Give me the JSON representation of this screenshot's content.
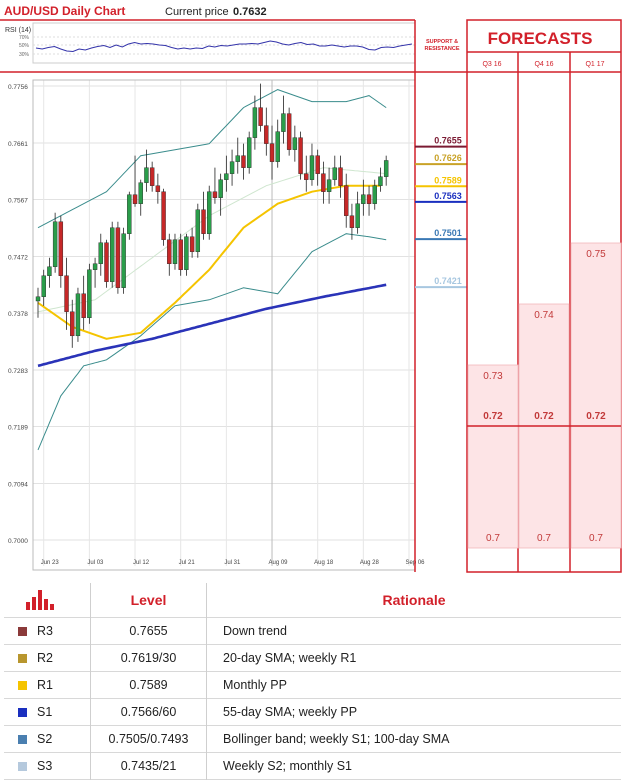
{
  "header": {
    "title": "AUD/USD Daily Chart",
    "price_label": "Current price",
    "price_value": "0.7632",
    "rsi_label": "RSI (14)",
    "rsi_ticks": [
      "70%",
      "50%",
      "30%"
    ]
  },
  "side_panel": {
    "title": "SUPPORT & RESISTANCE",
    "levels": [
      {
        "value": "0.7655",
        "color": "#7b1a33"
      },
      {
        "value": "0.7626",
        "color": "#c9a227"
      },
      {
        "value": "0.7589",
        "color": "#f5c400"
      },
      {
        "value": "0.7563",
        "color": "#1a2fbf"
      },
      {
        "value": "0.7501",
        "color": "#3a78b4"
      },
      {
        "value": "0.7421",
        "color": "#a7c7e0"
      }
    ]
  },
  "forecasts": {
    "title": "FORECASTS",
    "columns": [
      "Q3 16",
      "Q4 16",
      "Q1 17"
    ],
    "high": [
      0.73,
      0.74,
      0.75
    ],
    "mid": [
      0.72,
      0.72,
      0.72
    ],
    "low": [
      0.7,
      0.7,
      0.7
    ],
    "labels_high": [
      "0.73",
      "0.74",
      "0.75"
    ],
    "labels_mid": [
      "0.72",
      "0.72",
      "0.72"
    ],
    "labels_low": [
      "0.7",
      "0.7",
      "0.7"
    ]
  },
  "chart_data": {
    "type": "candlestick",
    "title": "AUD/USD Daily Chart",
    "ylim": [
      0.7,
      0.7756
    ],
    "y_ticks": [
      "0.7756",
      "0.7661",
      "0.7567",
      "0.7472",
      "0.7378",
      "0.7283",
      "0.7189",
      "0.7094",
      "0.7000"
    ],
    "x_ticks": [
      "Jun 23",
      "Jul 03",
      "Jul 12",
      "Jul 21",
      "Jul 31",
      "Aug 09",
      "Aug 18",
      "Aug 28",
      "Sep 06"
    ],
    "x_tick_index": [
      1,
      9,
      17,
      25,
      33,
      41,
      49,
      57,
      65
    ],
    "ohlc": [
      [
        0.7398,
        0.742,
        0.737,
        0.7405
      ],
      [
        0.7405,
        0.745,
        0.739,
        0.744
      ],
      [
        0.744,
        0.747,
        0.742,
        0.7455
      ],
      [
        0.7455,
        0.7545,
        0.7445,
        0.753
      ],
      [
        0.753,
        0.754,
        0.742,
        0.744
      ],
      [
        0.744,
        0.747,
        0.735,
        0.738
      ],
      [
        0.738,
        0.74,
        0.732,
        0.734
      ],
      [
        0.734,
        0.742,
        0.733,
        0.741
      ],
      [
        0.741,
        0.744,
        0.735,
        0.737
      ],
      [
        0.737,
        0.746,
        0.736,
        0.745
      ],
      [
        0.745,
        0.747,
        0.742,
        0.746
      ],
      [
        0.746,
        0.751,
        0.744,
        0.7495
      ],
      [
        0.7495,
        0.75,
        0.742,
        0.743
      ],
      [
        0.743,
        0.753,
        0.742,
        0.752
      ],
      [
        0.752,
        0.753,
        0.741,
        0.742
      ],
      [
        0.742,
        0.752,
        0.741,
        0.751
      ],
      [
        0.751,
        0.758,
        0.75,
        0.7575
      ],
      [
        0.7575,
        0.764,
        0.7555,
        0.756
      ],
      [
        0.756,
        0.76,
        0.754,
        0.7595
      ],
      [
        0.7595,
        0.765,
        0.758,
        0.762
      ],
      [
        0.762,
        0.763,
        0.758,
        0.759
      ],
      [
        0.759,
        0.761,
        0.756,
        0.758
      ],
      [
        0.758,
        0.7585,
        0.749,
        0.75
      ],
      [
        0.75,
        0.751,
        0.744,
        0.746
      ],
      [
        0.746,
        0.751,
        0.745,
        0.75
      ],
      [
        0.75,
        0.751,
        0.744,
        0.745
      ],
      [
        0.745,
        0.751,
        0.744,
        0.7505
      ],
      [
        0.7505,
        0.752,
        0.747,
        0.748
      ],
      [
        0.748,
        0.756,
        0.747,
        0.755
      ],
      [
        0.755,
        0.758,
        0.75,
        0.751
      ],
      [
        0.751,
        0.759,
        0.75,
        0.758
      ],
      [
        0.758,
        0.762,
        0.756,
        0.757
      ],
      [
        0.757,
        0.761,
        0.754,
        0.76
      ],
      [
        0.76,
        0.764,
        0.758,
        0.761
      ],
      [
        0.761,
        0.765,
        0.759,
        0.763
      ],
      [
        0.763,
        0.767,
        0.761,
        0.764
      ],
      [
        0.764,
        0.766,
        0.76,
        0.762
      ],
      [
        0.762,
        0.768,
        0.761,
        0.767
      ],
      [
        0.767,
        0.774,
        0.765,
        0.772
      ],
      [
        0.772,
        0.776,
        0.768,
        0.769
      ],
      [
        0.769,
        0.772,
        0.764,
        0.766
      ],
      [
        0.766,
        0.769,
        0.76,
        0.763
      ],
      [
        0.763,
        0.77,
        0.762,
        0.768
      ],
      [
        0.768,
        0.774,
        0.766,
        0.771
      ],
      [
        0.771,
        0.772,
        0.764,
        0.765
      ],
      [
        0.765,
        0.769,
        0.763,
        0.767
      ],
      [
        0.767,
        0.768,
        0.76,
        0.761
      ],
      [
        0.761,
        0.764,
        0.758,
        0.76
      ],
      [
        0.76,
        0.766,
        0.759,
        0.764
      ],
      [
        0.764,
        0.765,
        0.759,
        0.761
      ],
      [
        0.761,
        0.763,
        0.756,
        0.758
      ],
      [
        0.758,
        0.762,
        0.756,
        0.76
      ],
      [
        0.76,
        0.764,
        0.759,
        0.762
      ],
      [
        0.762,
        0.764,
        0.757,
        0.759
      ],
      [
        0.759,
        0.761,
        0.752,
        0.754
      ],
      [
        0.754,
        0.756,
        0.75,
        0.752
      ],
      [
        0.752,
        0.758,
        0.751,
        0.756
      ],
      [
        0.756,
        0.76,
        0.754,
        0.7575
      ],
      [
        0.7575,
        0.759,
        0.754,
        0.756
      ],
      [
        0.756,
        0.76,
        0.755,
        0.759
      ],
      [
        0.759,
        0.762,
        0.758,
        0.7605
      ],
      [
        0.7605,
        0.764,
        0.759,
        0.7632
      ]
    ],
    "sma20": [
      [
        0,
        0.7395
      ],
      [
        6,
        0.7355
      ],
      [
        12,
        0.7335
      ],
      [
        18,
        0.7345
      ],
      [
        24,
        0.7395
      ],
      [
        30,
        0.745
      ],
      [
        36,
        0.752
      ],
      [
        42,
        0.756
      ],
      [
        48,
        0.758
      ],
      [
        54,
        0.759
      ],
      [
        60,
        0.759
      ]
    ],
    "sma55": [
      [
        0,
        0.729
      ],
      [
        10,
        0.7315
      ],
      [
        20,
        0.7335
      ],
      [
        30,
        0.736
      ],
      [
        40,
        0.7385
      ],
      [
        50,
        0.7405
      ],
      [
        61,
        0.7425
      ]
    ],
    "bb_upper": [
      [
        0,
        0.752
      ],
      [
        6,
        0.755
      ],
      [
        12,
        0.758
      ],
      [
        18,
        0.764
      ],
      [
        24,
        0.765
      ],
      [
        30,
        0.766
      ],
      [
        36,
        0.772
      ],
      [
        42,
        0.775
      ],
      [
        48,
        0.773
      ],
      [
        54,
        0.773
      ],
      [
        58,
        0.774
      ],
      [
        61,
        0.772
      ]
    ],
    "bb_lower": [
      [
        0,
        0.715
      ],
      [
        4,
        0.724
      ],
      [
        8,
        0.729
      ],
      [
        12,
        0.73
      ],
      [
        18,
        0.734
      ],
      [
        24,
        0.739
      ],
      [
        30,
        0.74
      ],
      [
        36,
        0.742
      ],
      [
        42,
        0.741
      ],
      [
        48,
        0.748
      ],
      [
        54,
        0.751
      ],
      [
        58,
        0.7505
      ],
      [
        61,
        0.75
      ]
    ],
    "bb_mid": [
      [
        0,
        0.738
      ],
      [
        10,
        0.74
      ],
      [
        20,
        0.747
      ],
      [
        30,
        0.754
      ],
      [
        40,
        0.759
      ],
      [
        50,
        0.762
      ],
      [
        61,
        0.761
      ]
    ],
    "rsi": [
      52,
      50,
      53,
      55,
      50,
      46,
      45,
      50,
      48,
      52,
      55,
      57,
      53,
      58,
      54,
      60,
      63,
      60,
      61,
      60,
      58,
      57,
      53,
      50,
      52,
      50,
      52,
      51,
      56,
      54,
      57,
      56,
      58,
      60,
      60,
      61,
      60,
      63,
      66,
      64,
      60,
      58,
      61,
      63,
      59,
      60,
      56,
      56,
      58,
      56,
      54,
      56,
      56,
      54,
      49,
      48,
      53,
      54,
      53,
      56,
      58,
      60
    ]
  },
  "table": {
    "headers": [
      "",
      "Level",
      "Rationale"
    ],
    "rows": [
      {
        "id": "R3",
        "level": "0.7655",
        "rationale": "Down trend",
        "color": "#8b3a3a"
      },
      {
        "id": "R2",
        "level": "0.7619/30",
        "rationale": "20-day SMA; weekly R1",
        "color": "#b8962e"
      },
      {
        "id": "R1",
        "level": "0.7589",
        "rationale": "Monthly PP",
        "color": "#f5c400"
      },
      {
        "id": "S1",
        "level": "0.7566/60",
        "rationale": "55-day SMA; weekly PP",
        "color": "#1a2fbf"
      },
      {
        "id": "S2",
        "level": "0.7505/0.7493",
        "rationale": "Bollinger band; weekly S1; 100-day SMA",
        "color": "#4a7fb0"
      },
      {
        "id": "S3",
        "level": "0.7435/21",
        "rationale": "Weekly S2; monthly S1",
        "color": "#b5c9dd"
      }
    ]
  }
}
